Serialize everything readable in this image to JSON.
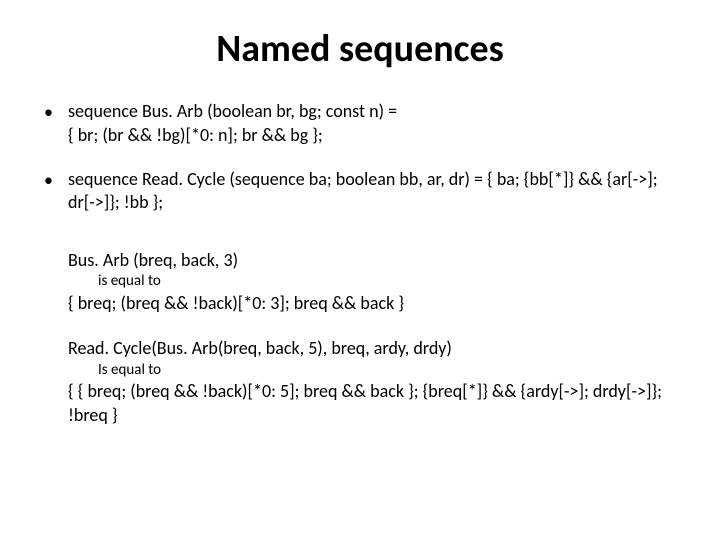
{
  "title": "Named sequences",
  "bullets": [
    {
      "line1": "sequence Bus. Arb (boolean br, bg; const n) =",
      "line2": "{ br; (br && !bg)[*0: n]; br && bg };"
    },
    {
      "line1": "sequence Read. Cycle (sequence ba; boolean bb, ar, dr) = { ba; {bb[*]} && {ar[->]; dr[->]}; !bb };",
      "line2": ""
    }
  ],
  "example1": {
    "header": "Bus. Arb (breq, back, 3)",
    "sub": "is equal to",
    "result": "{ breq; (breq && !back)[*0: 3]; breq && back }"
  },
  "example2": {
    "header": "Read. Cycle(Bus. Arb(breq, back, 5), breq, ardy, drdy)",
    "sub": "Is equal to",
    "result1": "{ { breq; (breq && !back)[*0: 5]; breq && back }; {breq[*]} && {ardy[->]; drdy[->]}; !breq }",
    "result2": ""
  },
  "colors": {
    "background": "#ffffff",
    "text": "#000000"
  },
  "fonts": {
    "title_size": 38,
    "body_size": 18,
    "sub_size": 15
  }
}
